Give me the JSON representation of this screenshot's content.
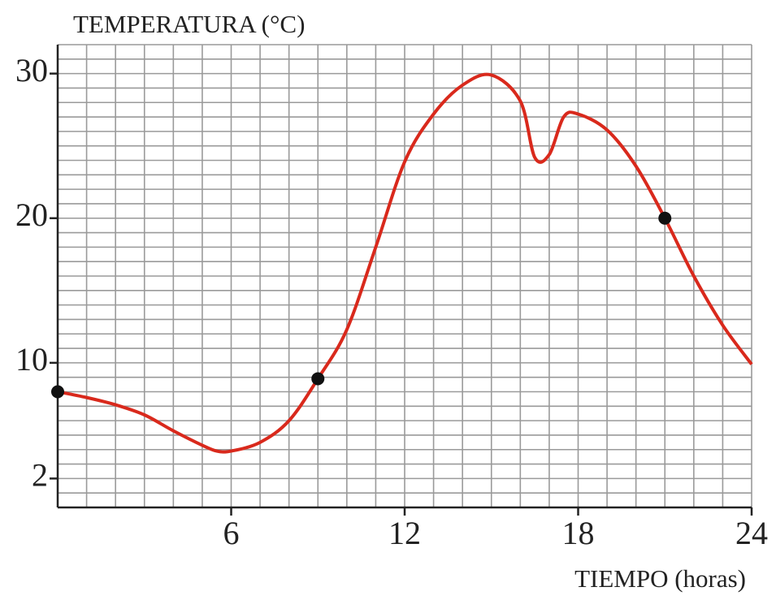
{
  "chart_data": {
    "type": "line",
    "y_label": "TEMPERATURA (°C)",
    "x_label": "TIEMPO (horas)",
    "x": [
      0,
      1,
      2,
      3,
      4,
      5,
      5.5,
      6,
      7,
      8,
      9,
      10,
      11,
      12,
      13,
      14,
      15,
      16,
      16.5,
      17,
      17.5,
      18,
      19,
      20,
      21,
      22,
      23,
      24
    ],
    "series": [
      {
        "color": "#d9291c",
        "values": [
          8,
          7.6,
          7.1,
          6.4,
          5.3,
          4.3,
          3.9,
          3.9,
          4.5,
          6.0,
          8.9,
          12.3,
          18.0,
          23.9,
          27.2,
          29.2,
          29.9,
          28.1,
          24.2,
          24.4,
          27.0,
          27.2,
          26.1,
          23.6,
          20,
          16,
          12.6,
          9.9
        ]
      }
    ],
    "points": {
      "color": "#111111",
      "x": [
        0,
        9,
        21
      ],
      "values": [
        8,
        8.9,
        20
      ]
    },
    "xlim": [
      0,
      24
    ],
    "ylim": [
      0,
      32
    ],
    "xticks": [
      6,
      12,
      18,
      24
    ],
    "yticks": [
      2,
      10,
      20,
      30
    ],
    "grid": true,
    "grid_step": 1
  }
}
